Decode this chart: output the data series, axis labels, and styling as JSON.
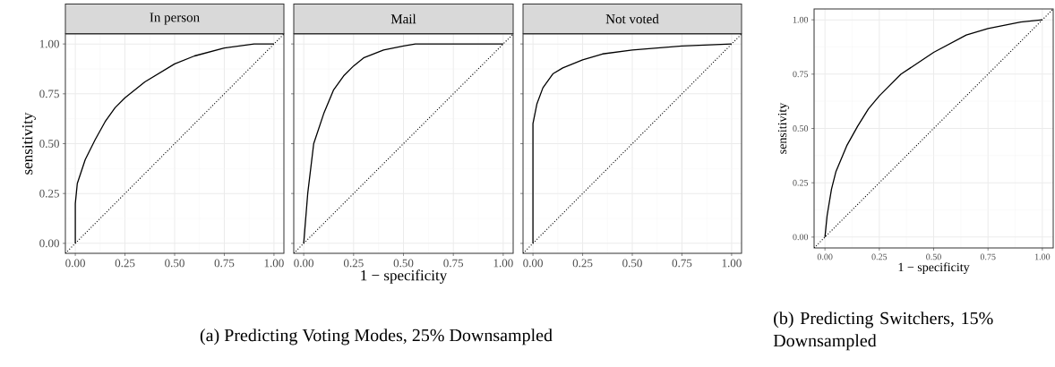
{
  "chart_data": [
    {
      "type": "line",
      "title": "In person",
      "ylabel": "sensitivity",
      "tick_labels": true,
      "grid": true,
      "xlim": [
        -0.05,
        1.05
      ],
      "ylim": [
        -0.05,
        1.05
      ],
      "xticks": [
        {
          "value": 0,
          "label": "0.00"
        },
        {
          "value": 0.25,
          "label": "0.25"
        },
        {
          "value": 0.5,
          "label": "0.50"
        },
        {
          "value": 0.75,
          "label": "0.75"
        },
        {
          "value": 1,
          "label": "1.00"
        }
      ],
      "yticks": [
        {
          "value": 0,
          "label": "0.00"
        },
        {
          "value": 0.25,
          "label": "0.25"
        },
        {
          "value": 0.5,
          "label": "0.50"
        },
        {
          "value": 0.75,
          "label": "0.75"
        },
        {
          "value": 1,
          "label": "1.00"
        }
      ],
      "series": [
        {
          "color": "#000000",
          "line_style": "solid",
          "x": [
            0,
            0,
            0.01,
            0.05,
            0.1,
            0.15,
            0.2,
            0.25,
            0.35,
            0.5,
            0.6,
            0.75,
            0.9,
            1
          ],
          "values": [
            0,
            0.2,
            0.3,
            0.42,
            0.52,
            0.61,
            0.68,
            0.73,
            0.81,
            0.9,
            0.94,
            0.98,
            1,
            1
          ]
        },
        {
          "color": "#000000",
          "line_style": "dotted",
          "x": [
            -0.05,
            1.05
          ],
          "values": [
            -0.05,
            1.05
          ]
        }
      ]
    },
    {
      "type": "line",
      "title": "Mail",
      "xlabel": "1 − specificity",
      "tick_labels": "x",
      "grid": true,
      "annotations": [
        "(a) Predicting Voting Modes, 25% Downsampled"
      ],
      "xlim": [
        -0.05,
        1.05
      ],
      "ylim": [
        -0.05,
        1.05
      ],
      "xticks": [
        {
          "value": 0,
          "label": "0.00"
        },
        {
          "value": 0.25,
          "label": "0.25"
        },
        {
          "value": 0.5,
          "label": "0.50"
        },
        {
          "value": 0.75,
          "label": "0.75"
        },
        {
          "value": 1,
          "label": "1.00"
        }
      ],
      "yticks": [
        0,
        0.25,
        0.5,
        0.75,
        1
      ],
      "series": [
        {
          "color": "#000000",
          "line_style": "solid",
          "x": [
            0,
            0.02,
            0.05,
            0.1,
            0.15,
            0.2,
            0.25,
            0.3,
            0.4,
            0.5,
            0.56,
            1
          ],
          "values": [
            0,
            0.25,
            0.5,
            0.65,
            0.77,
            0.84,
            0.89,
            0.93,
            0.97,
            0.99,
            1,
            1
          ]
        },
        {
          "color": "#000000",
          "line_style": "dotted",
          "x": [
            -0.05,
            1.05
          ],
          "values": [
            -0.05,
            1.05
          ]
        }
      ]
    },
    {
      "type": "line",
      "title": "Not voted",
      "tick_labels": "x",
      "grid": true,
      "xlim": [
        -0.05,
        1.05
      ],
      "ylim": [
        -0.05,
        1.05
      ],
      "xticks": [
        {
          "value": 0,
          "label": "0.00"
        },
        {
          "value": 0.25,
          "label": "0.25"
        },
        {
          "value": 0.5,
          "label": "0.50"
        },
        {
          "value": 0.75,
          "label": "0.75"
        },
        {
          "value": 1,
          "label": "1.00"
        }
      ],
      "yticks": [
        0,
        0.25,
        0.5,
        0.75,
        1
      ],
      "series": [
        {
          "color": "#000000",
          "line_style": "solid",
          "x": [
            0,
            0,
            0.02,
            0.05,
            0.1,
            0.15,
            0.25,
            0.35,
            0.5,
            0.75,
            1
          ],
          "values": [
            0,
            0.6,
            0.7,
            0.78,
            0.85,
            0.88,
            0.92,
            0.95,
            0.97,
            0.99,
            1
          ]
        },
        {
          "color": "#000000",
          "line_style": "dotted",
          "x": [
            -0.05,
            1.05
          ],
          "values": [
            -0.05,
            1.05
          ]
        }
      ]
    },
    {
      "type": "line",
      "xlabel": "1 − specificity",
      "ylabel": "sensitivity",
      "tick_labels": true,
      "grid": true,
      "annotations": [
        "(b) Predicting Switchers, 15% Downsampled"
      ],
      "xlim": [
        -0.05,
        1.05
      ],
      "ylim": [
        -0.05,
        1.05
      ],
      "xticks": [
        {
          "value": 0,
          "label": "0.00"
        },
        {
          "value": 0.25,
          "label": "0.25"
        },
        {
          "value": 0.5,
          "label": "0.50"
        },
        {
          "value": 0.75,
          "label": "0.75"
        },
        {
          "value": 1,
          "label": "1.00"
        }
      ],
      "yticks": [
        {
          "value": 0,
          "label": "0.00"
        },
        {
          "value": 0.25,
          "label": "0.25"
        },
        {
          "value": 0.5,
          "label": "0.50"
        },
        {
          "value": 0.75,
          "label": "0.75"
        },
        {
          "value": 1,
          "label": "1.00"
        }
      ],
      "series": [
        {
          "color": "#000000",
          "line_style": "solid",
          "x": [
            0,
            0.01,
            0.03,
            0.05,
            0.1,
            0.15,
            0.2,
            0.25,
            0.35,
            0.5,
            0.65,
            0.75,
            0.9,
            1
          ],
          "values": [
            0,
            0.1,
            0.22,
            0.3,
            0.42,
            0.51,
            0.59,
            0.65,
            0.75,
            0.85,
            0.93,
            0.96,
            0.99,
            1
          ]
        },
        {
          "color": "#000000",
          "line_style": "dotted",
          "x": [
            -0.05,
            1.05
          ],
          "values": [
            -0.05,
            1.05
          ]
        }
      ]
    }
  ]
}
